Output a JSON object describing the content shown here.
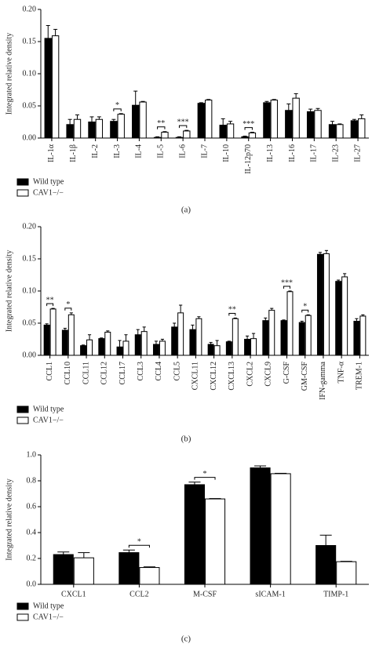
{
  "chart_data": [
    {
      "type": "bar",
      "y_label": "Integrated relative density",
      "caption": "(a)",
      "categories": [
        "IL-1α",
        "IL-1β",
        "IL-2",
        "IL-3",
        "IL-4",
        "IL-5",
        "IL-6",
        "IL-7",
        "IL-10",
        "IL-12p70",
        "IL-13",
        "IL-16",
        "IL-17",
        "IL-23",
        "IL-27"
      ],
      "x_tick_rotation": -90,
      "series": [
        {
          "name": "Wild type",
          "color": "#000000",
          "values": [
            0.155,
            0.021,
            0.025,
            0.026,
            0.051,
            0.001,
            0.001,
            0.054,
            0.02,
            0.002,
            0.055,
            0.043,
            0.041,
            0.021,
            0.027
          ],
          "errors": [
            0.02,
            0.008,
            0.008,
            0.003,
            0.022,
            0.001,
            0.001,
            0.001,
            0.01,
            0.001,
            0.002,
            0.01,
            0.004,
            0.005,
            0.002
          ]
        },
        {
          "name": "CAV1−/−",
          "color": "#ffffff",
          "values": [
            0.159,
            0.029,
            0.029,
            0.037,
            0.056,
            0.009,
            0.011,
            0.059,
            0.022,
            0.008,
            0.059,
            0.062,
            0.043,
            0.021,
            0.03
          ],
          "errors": [
            0.01,
            0.007,
            0.004,
            0.001,
            0.001,
            0.001,
            0.001,
            0.001,
            0.004,
            0.001,
            0.001,
            0.007,
            0.003,
            0.001,
            0.006
          ]
        }
      ],
      "ylim": [
        0,
        0.2
      ],
      "yticks": [
        {
          "value": 0,
          "label": "0.00"
        },
        {
          "value": 0.05,
          "label": "0.05"
        },
        {
          "value": 0.1,
          "label": "0.10"
        },
        {
          "value": 0.15,
          "label": "0.15"
        },
        {
          "value": 0.2,
          "label": "0.20"
        }
      ],
      "annotations": [
        {
          "category": "IL-3",
          "label": "*"
        },
        {
          "category": "IL-5",
          "label": "**"
        },
        {
          "category": "IL-6",
          "label": "***"
        },
        {
          "category": "IL-12p70",
          "label": "***"
        }
      ],
      "legend": "bottom-left"
    },
    {
      "type": "bar",
      "y_label": "Integrated relative density",
      "caption": "(b)",
      "categories": [
        "CCL1",
        "CCL10",
        "CCL11",
        "CCL12",
        "CCL17",
        "CCL3",
        "CCL4",
        "CCL5",
        "CXCL11",
        "CXCL12",
        "CXCL13",
        "CXCL2",
        "CXCL9",
        "G-CSF",
        "GM-CSF",
        "IFN-gamma",
        "TNF-α",
        "TREM-1"
      ],
      "x_tick_rotation": -90,
      "series": [
        {
          "name": "Wild type",
          "color": "#000000",
          "values": [
            0.047,
            0.039,
            0.015,
            0.026,
            0.013,
            0.032,
            0.017,
            0.044,
            0.04,
            0.017,
            0.021,
            0.025,
            0.054,
            0.054,
            0.051,
            0.157,
            0.115,
            0.053
          ],
          "errors": [
            0.002,
            0.003,
            0.001,
            0.001,
            0.01,
            0.008,
            0.005,
            0.006,
            0.007,
            0.003,
            0.001,
            0.005,
            0.004,
            0.001,
            0.002,
            0.003,
            0.002,
            0.004
          ]
        },
        {
          "name": "CAV1−/−",
          "color": "#ffffff",
          "values": [
            0.072,
            0.063,
            0.024,
            0.036,
            0.022,
            0.037,
            0.022,
            0.066,
            0.057,
            0.015,
            0.057,
            0.026,
            0.07,
            0.099,
            0.062,
            0.158,
            0.122,
            0.061
          ],
          "errors": [
            0.001,
            0.003,
            0.008,
            0.002,
            0.01,
            0.007,
            0.003,
            0.012,
            0.003,
            0.008,
            0.001,
            0.008,
            0.003,
            0.001,
            0.001,
            0.005,
            0.005,
            0.002
          ]
        }
      ],
      "ylim": [
        0,
        0.2
      ],
      "yticks": [
        {
          "value": 0,
          "label": "0.00"
        },
        {
          "value": 0.05,
          "label": "0.05"
        },
        {
          "value": 0.1,
          "label": "0.10"
        },
        {
          "value": 0.15,
          "label": "0.15"
        },
        {
          "value": 0.2,
          "label": "0.20"
        }
      ],
      "annotations": [
        {
          "category": "CCL1",
          "label": "**"
        },
        {
          "category": "CCL10",
          "label": "*"
        },
        {
          "category": "CXCL13",
          "label": "**"
        },
        {
          "category": "G-CSF",
          "label": "***"
        },
        {
          "category": "GM-CSF",
          "label": "*"
        }
      ],
      "legend": "bottom-left"
    },
    {
      "type": "bar",
      "y_label": "Integrated relative density",
      "caption": "(c)",
      "categories": [
        "CXCL1",
        "CCL2",
        "M-CSF",
        "sICAM-1",
        "TIMP-1"
      ],
      "x_tick_rotation": 0,
      "series": [
        {
          "name": "Wild type",
          "color": "#000000",
          "values": [
            0.23,
            0.245,
            0.77,
            0.9,
            0.3
          ],
          "errors": [
            0.02,
            0.02,
            0.02,
            0.015,
            0.08
          ]
        },
        {
          "name": "CAV1−/−",
          "color": "#ffffff",
          "values": [
            0.205,
            0.13,
            0.66,
            0.855,
            0.175
          ],
          "errors": [
            0.04,
            0.005,
            0.003,
            0.003,
            0.003
          ]
        }
      ],
      "ylim": [
        0,
        1
      ],
      "yticks": [
        {
          "value": 0,
          "label": "0.0"
        },
        {
          "value": 0.2,
          "label": "0.2"
        },
        {
          "value": 0.4,
          "label": "0.4"
        },
        {
          "value": 0.6,
          "label": "0.6"
        },
        {
          "value": 0.8,
          "label": "0.8"
        },
        {
          "value": 1,
          "label": "1.0"
        }
      ],
      "annotations": [
        {
          "category": "CCL2",
          "label": "*"
        },
        {
          "category": "M-CSF",
          "label": "*"
        }
      ],
      "legend": "bottom-left"
    }
  ]
}
